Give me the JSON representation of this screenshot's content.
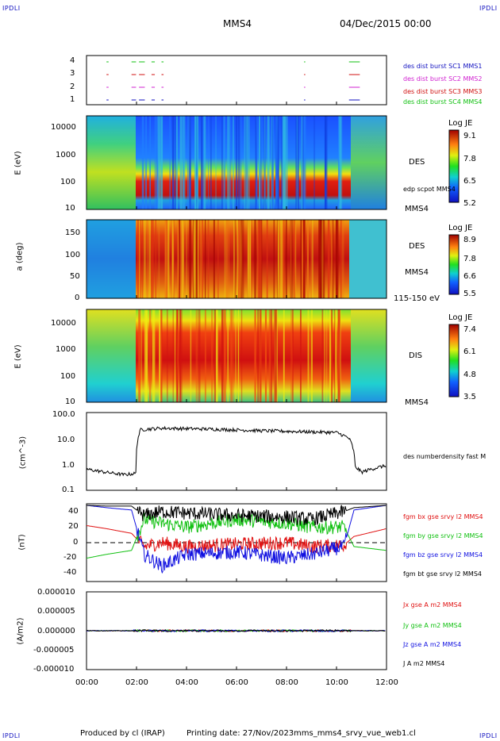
{
  "header": {
    "corner_left": "IPDLI",
    "corner_right": "IPDLI",
    "title": "MMS4",
    "date": "04/Dec/2015 00:00"
  },
  "footer": {
    "produced": "Produced by cl (IRAP)",
    "printing": "Printing date: 27/Nov/2023",
    "file": "mms_mms4_srvy_vue_web1.cl",
    "corner_left": "IPDLI",
    "corner_right": "IPDLI"
  },
  "colors": {
    "mms1": "#1010c0",
    "mms2": "#d020d0",
    "mms3": "#d01010",
    "mms4": "#10c010",
    "black": "#000000",
    "red": "#e01010",
    "green": "#10c010",
    "blue": "#1010e0"
  },
  "chart_data": [
    {
      "type": "scatter",
      "title": "",
      "xlabel": "",
      "ylabel": "",
      "yticks": [
        "4",
        "3",
        "2",
        "1"
      ],
      "legend": [
        "des dist burst SC1 MMS1",
        "des dist burst SC2 MMS2",
        "des dist burst SC3 MMS3",
        "des dist burst SC4 MMS4"
      ]
    },
    {
      "type": "heatmap",
      "ylabel": "E (eV)",
      "yticks": [
        "10000",
        "1000",
        "100",
        "10"
      ],
      "instrument": "DES",
      "annotation": "edp scpot MMS4",
      "spacecraft": "MMS4",
      "colorbar": {
        "title": "Log JE",
        "ticks": [
          "9.1",
          "7.8",
          "6.5",
          "5.2"
        ]
      }
    },
    {
      "type": "heatmap",
      "ylabel": "a (deg)",
      "yticks": [
        "150",
        "100",
        "50",
        "0"
      ],
      "instrument": "DES",
      "spacecraft": "MMS4",
      "energy": "115-150 eV",
      "colorbar": {
        "title": "Log JE",
        "ticks": [
          "8.9",
          "7.8",
          "6.6",
          "5.5"
        ]
      }
    },
    {
      "type": "heatmap",
      "ylabel": "E (eV)",
      "yticks": [
        "10000",
        "1000",
        "100",
        "10"
      ],
      "instrument": "DIS",
      "spacecraft": "MMS4",
      "colorbar": {
        "title": "Log JE",
        "ticks": [
          "7.4",
          "6.1",
          "4.8",
          "3.5"
        ]
      }
    },
    {
      "type": "line",
      "ylabel": "(cm^-3)",
      "yticks": [
        "100.0",
        "10.0",
        "1.0",
        "0.1"
      ],
      "series_label": "des numberdensity fast M",
      "x": [
        "00:00",
        "00:45",
        "01:30",
        "01:58",
        "02:10",
        "03:00",
        "05:00",
        "07:00",
        "09:00",
        "10:00",
        "10:30",
        "10:45",
        "11:00",
        "12:00"
      ],
      "y": [
        0.65,
        0.5,
        0.4,
        0.45,
        22,
        25,
        23,
        20,
        18,
        17,
        10,
        0.8,
        0.5,
        0.9
      ]
    },
    {
      "type": "line",
      "ylabel": "(nT)",
      "yticks": [
        "40",
        "20",
        "0",
        "-20",
        "-40"
      ],
      "series": [
        {
          "name": "fgm bx gse srvy l2 MMS4",
          "x": [
            0,
            0.8,
            1.8,
            2.3,
            3,
            4,
            6,
            8,
            9,
            10.3,
            10.7,
            12
          ],
          "y": [
            22,
            18,
            12,
            -5,
            0,
            -5,
            -2,
            0,
            -5,
            -3,
            8,
            18
          ]
        },
        {
          "name": "fgm by gse srvy l2 MMS4",
          "x": [
            0,
            0.8,
            1.8,
            2.3,
            3,
            4,
            6,
            8,
            9,
            10.3,
            10.7,
            12
          ],
          "y": [
            -20,
            -15,
            -10,
            30,
            25,
            20,
            30,
            25,
            20,
            20,
            -5,
            -10
          ]
        },
        {
          "name": "fgm bz gse srvy l2 MMS4",
          "x": [
            0,
            0.8,
            1.8,
            2.3,
            3,
            4,
            6,
            8,
            9,
            10.3,
            10.7,
            12
          ],
          "y": [
            48,
            45,
            42,
            -15,
            -30,
            -15,
            -12,
            -20,
            -15,
            -5,
            42,
            48
          ]
        },
        {
          "name": "fgm bt gse srvy l2 MMS4",
          "x": [
            0,
            0.8,
            1.8,
            2.3,
            3,
            4,
            6,
            8,
            9,
            10.3,
            10.7,
            12
          ],
          "y": [
            48,
            47,
            47,
            35,
            40,
            38,
            35,
            33,
            30,
            40,
            45,
            48
          ]
        }
      ]
    },
    {
      "type": "line",
      "ylabel": "(A/m2)",
      "yticks": [
        "0.000010",
        "0.000005",
        "0.000000",
        "-0.000005",
        "-0.000010"
      ],
      "series": [
        {
          "name": "Jx gse A m2 MMS4"
        },
        {
          "name": "Jy gse A m2 MMS4"
        },
        {
          "name": "Jz gse A m2 MMS4"
        },
        {
          "name": "J A m2 MMS4"
        }
      ],
      "x": [
        "00:00",
        "12:00"
      ],
      "y": [
        0,
        0
      ]
    }
  ],
  "xaxis": {
    "ticks": [
      "00:00",
      "02:00",
      "04:00",
      "06:00",
      "08:00",
      "10:00",
      "12:00"
    ]
  }
}
